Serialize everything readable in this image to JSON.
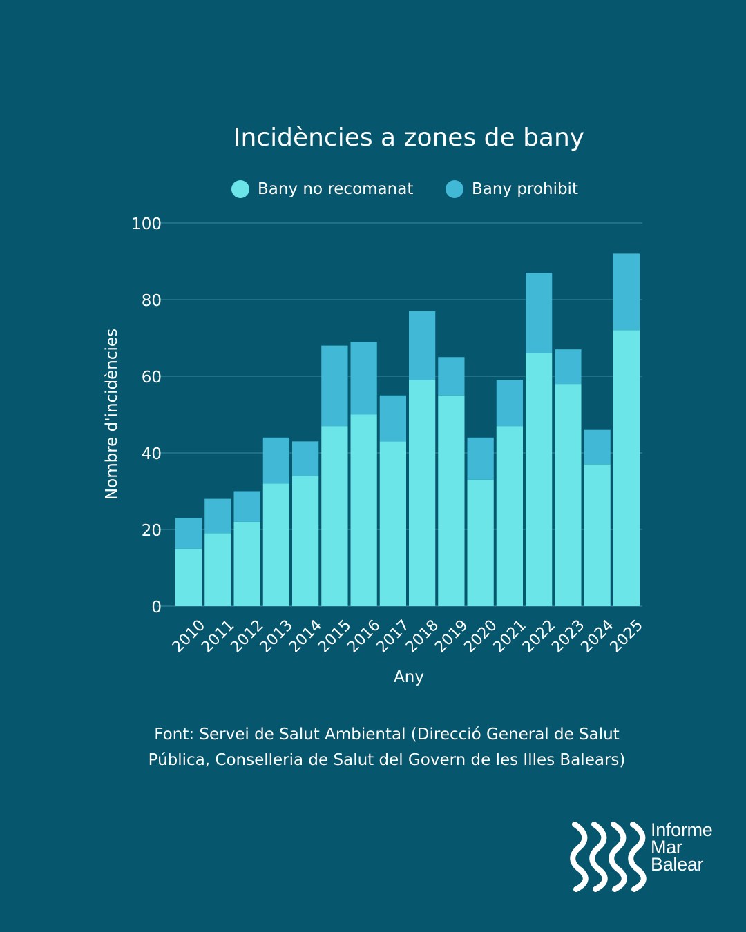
{
  "chart_data": {
    "type": "bar",
    "stacked": true,
    "title": "Incidències a zones de bany",
    "xlabel": "Any",
    "ylabel": "Nombre d'incidències",
    "ylim": [
      0,
      100
    ],
    "yticks": [
      0,
      20,
      40,
      60,
      80,
      100
    ],
    "grid": true,
    "legend_position": "top",
    "categories": [
      "2010",
      "2011",
      "2012",
      "2013",
      "2014",
      "2015",
      "2016",
      "2017",
      "2018",
      "2019",
      "2020",
      "2021",
      "2022",
      "2023",
      "2024",
      "2025"
    ],
    "series": [
      {
        "name": "Bany no recomanat",
        "color": "#6ce5e8",
        "values": [
          15,
          19,
          22,
          32,
          34,
          47,
          50,
          43,
          59,
          55,
          33,
          47,
          66,
          58,
          37,
          72
        ]
      },
      {
        "name": "Bany prohibit",
        "color": "#41b8d5",
        "values": [
          8,
          9,
          8,
          12,
          9,
          21,
          19,
          12,
          18,
          10,
          11,
          12,
          21,
          9,
          9,
          20
        ]
      }
    ]
  },
  "source": {
    "line1": "Font: Servei de Salut Ambiental (Direcció General de Salut",
    "line2": "Pública, Conselleria de Salut del Govern de les Illes Balears)"
  },
  "logo": {
    "line1": "Informe",
    "line2": "Mar",
    "line3": "Balear"
  }
}
